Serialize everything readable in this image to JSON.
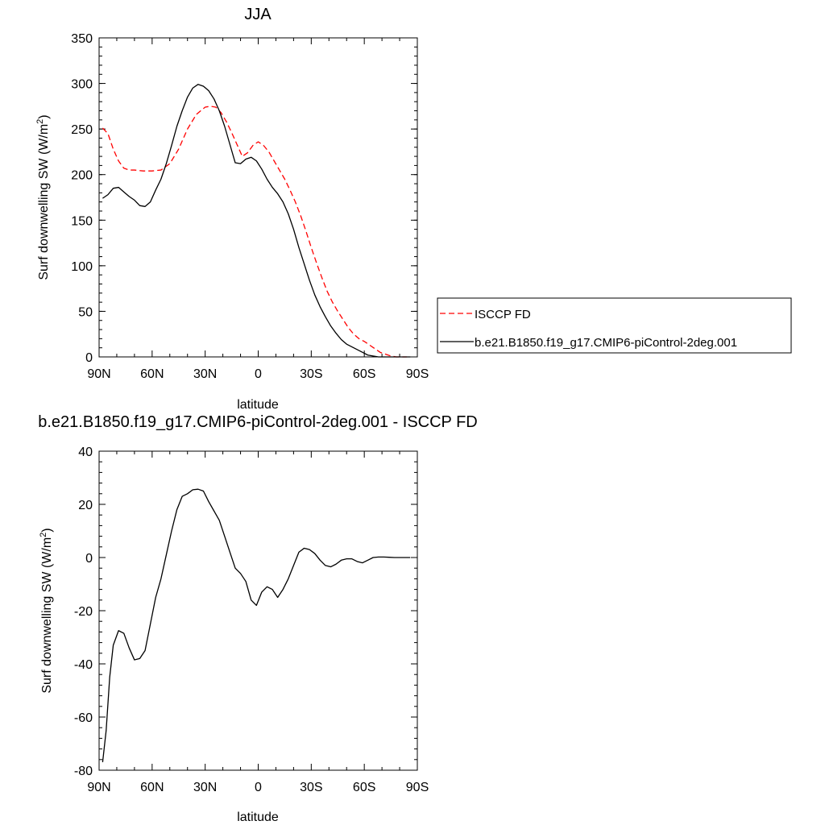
{
  "chart_data": [
    {
      "type": "line",
      "title": "JJA",
      "xlabel": "latitude",
      "ylabel": "Surf downwelling SW (W/m",
      "ylabel_sup": "2",
      "ylabel_close": ")",
      "xlim": [
        -90,
        90
      ],
      "ylim": [
        0,
        350
      ],
      "grid": false,
      "x_ticks": [
        -90,
        -60,
        -30,
        0,
        30,
        60,
        90
      ],
      "x_tick_labels": [
        "90N",
        "60N",
        "30N",
        "0",
        "30S",
        "60S",
        "90S"
      ],
      "y_ticks": [
        0,
        50,
        100,
        150,
        200,
        250,
        300,
        350
      ],
      "y_tick_labels": [
        "0",
        "50",
        "100",
        "150",
        "200",
        "250",
        "300",
        "350"
      ],
      "legend_position": "right",
      "series": [
        {
          "name": "ISCCP FD",
          "color": "#ff0000",
          "dash": "dashed",
          "x": [
            -88,
            -85,
            -82,
            -79,
            -76,
            -73,
            -70,
            -65,
            -60,
            -55,
            -50,
            -45,
            -40,
            -35,
            -30,
            -27,
            -24,
            -21,
            -18,
            -15,
            -12,
            -9,
            -6,
            -3,
            0,
            3,
            6,
            9,
            12,
            15,
            18,
            21,
            24,
            27,
            30,
            33,
            36,
            39,
            42,
            45,
            48,
            51,
            54,
            57,
            60,
            63,
            66,
            69,
            72,
            75,
            78,
            81,
            84
          ],
          "y": [
            251,
            245,
            228,
            215,
            207,
            205,
            205,
            204,
            204,
            205,
            212,
            228,
            250,
            266,
            274,
            275,
            274,
            268,
            258,
            246,
            233,
            220,
            224,
            232,
            236,
            232,
            225,
            215,
            205,
            195,
            183,
            170,
            155,
            138,
            120,
            103,
            87,
            72,
            60,
            50,
            41,
            32,
            25,
            20,
            17,
            13,
            9,
            5,
            3,
            1,
            0,
            0,
            0
          ]
        },
        {
          "name": "b.e21.B1850.f19_g17.CMIP6-piControl-2deg.001",
          "color": "#000000",
          "dash": "solid",
          "x": [
            -88,
            -85,
            -82,
            -79,
            -76,
            -73,
            -70,
            -67,
            -64,
            -61,
            -58,
            -55,
            -52,
            -49,
            -46,
            -43,
            -40,
            -37,
            -34,
            -31,
            -28,
            -25,
            -22,
            -19,
            -16,
            -13,
            -10,
            -7,
            -4,
            -1,
            2,
            5,
            8,
            11,
            14,
            17,
            20,
            23,
            26,
            29,
            32,
            35,
            38,
            41,
            44,
            47,
            50,
            53,
            56,
            59,
            62,
            65,
            68,
            71,
            74,
            77,
            80,
            83,
            86
          ],
          "y": [
            174,
            178,
            185,
            186,
            181,
            176,
            172,
            166,
            165,
            170,
            183,
            195,
            212,
            232,
            253,
            270,
            285,
            295,
            299,
            297,
            292,
            283,
            270,
            253,
            233,
            213,
            212,
            217,
            219,
            215,
            206,
            195,
            186,
            179,
            170,
            157,
            140,
            120,
            102,
            84,
            68,
            55,
            44,
            34,
            26,
            19,
            14,
            11,
            8,
            5,
            2,
            1,
            0,
            0,
            0,
            0,
            0,
            0,
            0
          ]
        }
      ]
    },
    {
      "type": "line",
      "title": "b.e21.B1850.f19_g17.CMIP6-piControl-2deg.001 - ISCCP FD",
      "xlabel": "latitude",
      "ylabel": "Surf downwelling SW (W/m",
      "ylabel_sup": "2",
      "ylabel_close": ")",
      "xlim": [
        -90,
        90
      ],
      "ylim": [
        -80,
        40
      ],
      "grid": false,
      "x_ticks": [
        -90,
        -60,
        -30,
        0,
        30,
        60,
        90
      ],
      "x_tick_labels": [
        "90N",
        "60N",
        "30N",
        "0",
        "30S",
        "60S",
        "90S"
      ],
      "y_ticks": [
        -80,
        -60,
        -40,
        -20,
        0,
        20,
        40
      ],
      "y_tick_labels": [
        "-80",
        "-60",
        "-40",
        "-20",
        "0",
        "20",
        "40"
      ],
      "series": [
        {
          "color": "#000000",
          "dash": "solid",
          "x": [
            -88,
            -86,
            -84,
            -82,
            -79,
            -76,
            -73,
            -70,
            -67,
            -64,
            -61,
            -58,
            -55,
            -52,
            -49,
            -46,
            -43,
            -40,
            -37,
            -34,
            -31,
            -28,
            -25,
            -22,
            -19,
            -16,
            -13,
            -10,
            -7,
            -4,
            -1,
            2,
            5,
            8,
            11,
            14,
            17,
            20,
            23,
            26,
            29,
            32,
            35,
            38,
            41,
            44,
            47,
            50,
            53,
            56,
            59,
            62,
            65,
            68,
            71,
            74,
            77,
            80,
            83,
            86
          ],
          "y": [
            -77,
            -65,
            -45,
            -33,
            -27.5,
            -28.5,
            -34,
            -38.5,
            -38,
            -35,
            -25,
            -15,
            -8,
            1,
            10,
            18,
            23,
            24,
            25.5,
            25.7,
            25,
            21,
            17.5,
            14,
            8,
            2,
            -4,
            -6,
            -9,
            -16,
            -18,
            -13,
            -11,
            -12,
            -15,
            -12,
            -8,
            -3,
            2,
            3.5,
            3,
            1.5,
            -1,
            -3,
            -3.5,
            -2.5,
            -1,
            -0.5,
            -0.5,
            -1.5,
            -2,
            -1,
            0,
            0.2,
            0.2,
            0.1,
            0,
            0,
            0,
            0
          ]
        }
      ]
    }
  ]
}
